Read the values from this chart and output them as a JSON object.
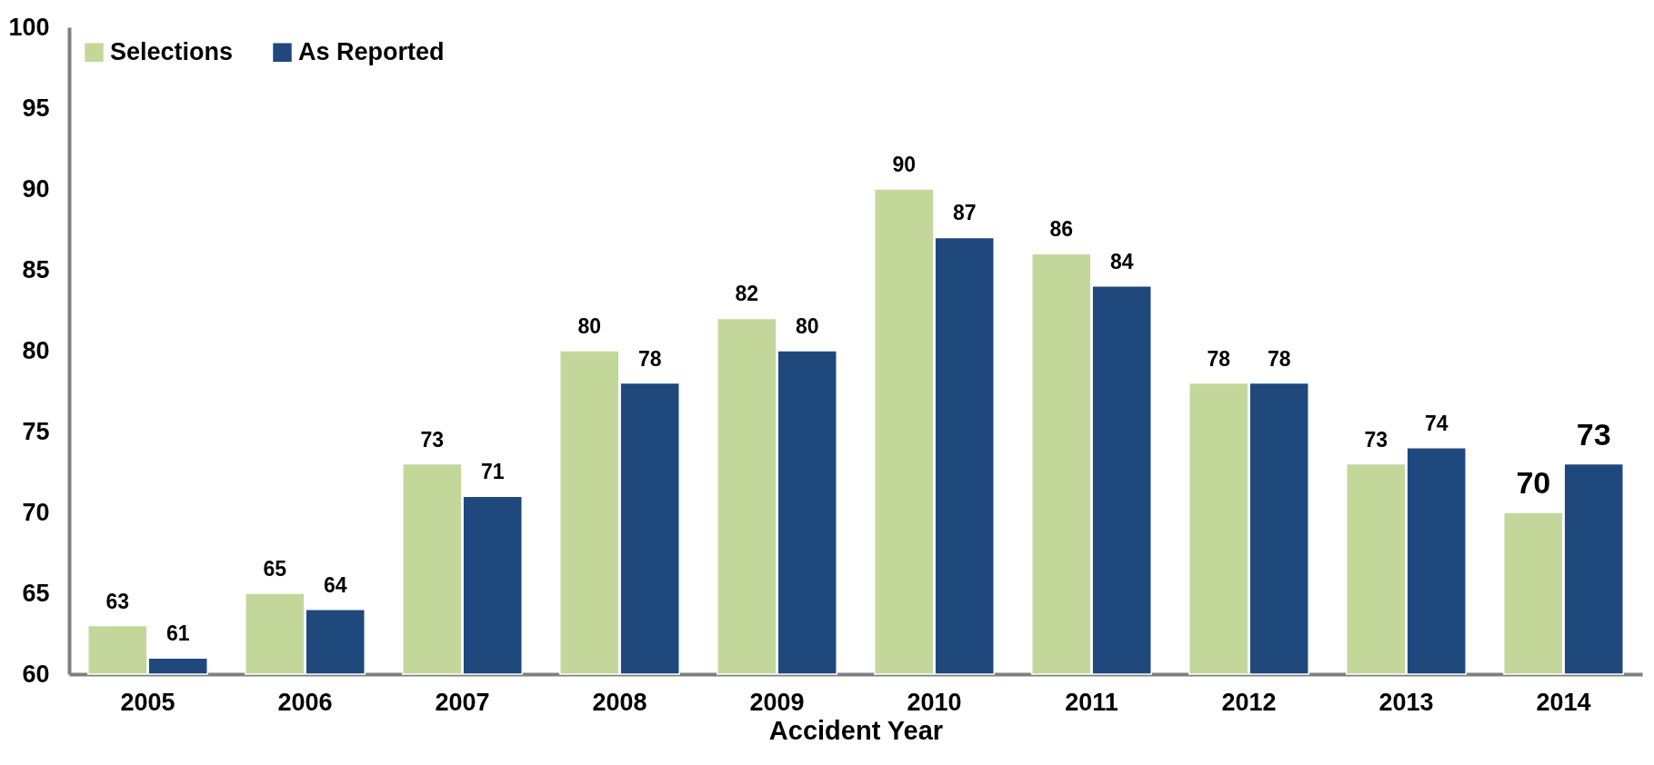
{
  "chart_data": {
    "type": "bar",
    "xlabel": "Accident Year",
    "categories": [
      "2005",
      "2006",
      "2007",
      "2008",
      "2009",
      "2010",
      "2011",
      "2012",
      "2013",
      "2014"
    ],
    "series": [
      {
        "name": "Selections",
        "color": "#c4d79b",
        "values": [
          63,
          65,
          73,
          80,
          82,
          90,
          86,
          78,
          73,
          70
        ]
      },
      {
        "name": "As Reported",
        "color": "#1f497d",
        "values": [
          61,
          64,
          71,
          78,
          80,
          87,
          84,
          78,
          74,
          73
        ]
      }
    ],
    "ylim": [
      60,
      100
    ],
    "yticks": [
      60,
      65,
      70,
      75,
      80,
      85,
      90,
      95,
      100
    ],
    "data_labels": true,
    "legend": "top left"
  }
}
